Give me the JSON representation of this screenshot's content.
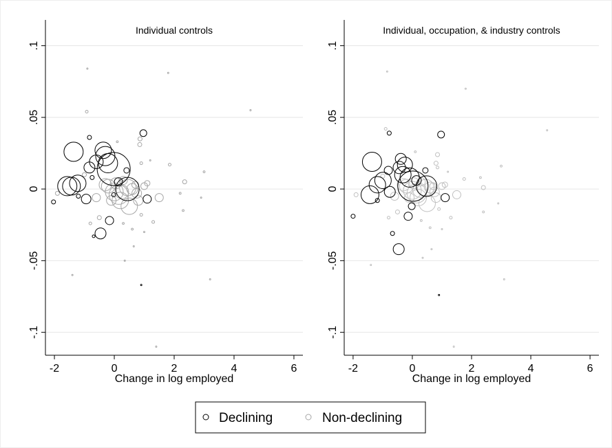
{
  "chart_data": [
    {
      "type": "scatter",
      "title": "Individual controls",
      "xlabel": "Change in log employed",
      "xlim": [
        -2.3,
        6.3
      ],
      "ylim": [
        -0.116,
        0.118
      ],
      "xticks": [
        -2,
        0,
        2,
        4,
        6
      ],
      "yticks": [
        {
          "value": 0.1,
          "label": ".1"
        },
        {
          "value": 0.05,
          "label": ".05"
        },
        {
          "value": 0,
          "label": "0"
        },
        {
          "value": -0.05,
          "label": "-.05"
        },
        {
          "value": -0.1,
          "label": "-.1"
        }
      ],
      "grid": true,
      "series": [
        {
          "name": "Declining",
          "color": "#000000",
          "x": [
            -1.36,
            0.97,
            -0.83,
            -0.37,
            -0.3,
            -0.21,
            -0.6,
            -0.02,
            -0.83,
            0.44,
            -1.57,
            -1.43,
            -1.22,
            0.14,
            0.41,
            -0.94,
            1.1,
            -2.03,
            -1.2,
            -0.74,
            -0.02,
            -0.16,
            -0.46,
            -0.69,
            0.9
          ],
          "y": [
            0.026,
            0.039,
            0.036,
            0.027,
            0.023,
            0.018,
            0.019,
            0.014,
            0.015,
            0.0,
            0.002,
            0.002,
            0.004,
            0.005,
            0.013,
            -0.007,
            -0.007,
            -0.009,
            -0.005,
            0.008,
            -0.004,
            -0.022,
            -0.031,
            -0.033,
            -0.067
          ],
          "sizes": [
            196,
            25,
            9,
            144,
            196,
            196,
            100,
            576,
            64,
            289,
            196,
            169,
            144,
            36,
            16,
            49,
            36,
            9,
            9,
            9,
            9,
            36,
            64,
            4,
            1
          ]
        },
        {
          "name": "Non-declining",
          "color": "#a6a6a6",
          "x": [
            -0.9,
            1.8,
            4.55,
            -0.92,
            0.86,
            0.85,
            1.2,
            1.85,
            3.0,
            2.35,
            2.2,
            1.5,
            1.0,
            0.75,
            0.6,
            0.3,
            0.0,
            -0.2,
            0.2,
            0.5,
            0.8,
            0.9,
            1.3,
            0.3,
            0.6,
            -0.8,
            -0.5,
            -1.9,
            -1.0,
            0.1,
            0.9,
            0.65,
            1.0,
            2.3,
            2.9,
            3.2,
            -1.4,
            1.4,
            0.35,
            0.45,
            0.15,
            -0.3,
            -0.6,
            0.05,
            0.7,
            -0.1,
            1.1,
            0.25
          ],
          "y": [
            0.084,
            0.081,
            0.055,
            0.054,
            0.035,
            0.031,
            0.02,
            0.017,
            0.012,
            0.005,
            -0.003,
            -0.006,
            0.002,
            -0.003,
            0.0,
            0.006,
            -0.002,
            0.002,
            -0.008,
            -0.012,
            -0.008,
            -0.018,
            -0.023,
            -0.024,
            -0.028,
            -0.024,
            -0.02,
            -0.003,
            0.01,
            0.033,
            0.018,
            -0.04,
            -0.03,
            -0.015,
            -0.006,
            -0.063,
            -0.06,
            -0.11,
            -0.05,
            0.001,
            -0.004,
            0.003,
            -0.006,
            0.004,
            0.003,
            -0.008,
            0.004,
            -0.002
          ],
          "sizes": [
            1,
            1,
            1,
            4,
            9,
            9,
            1,
            4,
            2,
            9,
            2,
            36,
            25,
            49,
            64,
            36,
            169,
            100,
            144,
            144,
            49,
            4,
            4,
            2,
            2,
            4,
            9,
            9,
            9,
            2,
            4,
            1,
            1,
            2,
            1,
            1,
            1,
            1,
            1,
            144,
            196,
            81,
            36,
            64,
            25,
            49,
            16,
            100
          ]
        }
      ]
    },
    {
      "type": "scatter",
      "title": "Individual, occupation, & industry controls",
      "xlabel": "Change in log employed",
      "xlim": [
        -2.3,
        6.3
      ],
      "ylim": [
        -0.116,
        0.118
      ],
      "xticks": [
        -2,
        0,
        2,
        4,
        6
      ],
      "yticks": [
        {
          "value": 0.1,
          "label": ".1"
        },
        {
          "value": 0.05,
          "label": ".05"
        },
        {
          "value": 0,
          "label": "0"
        },
        {
          "value": -0.05,
          "label": "-.05"
        },
        {
          "value": -0.1,
          "label": "-.1"
        }
      ],
      "grid": true,
      "series": [
        {
          "color": "#000000",
          "x": [
            -1.36,
            -2.0,
            -1.43,
            -0.99,
            -1.18,
            -0.76,
            -0.81,
            -0.44,
            -0.39,
            -0.25,
            -0.09,
            -0.32,
            0.02,
            0.48,
            0.14,
            0.44,
            -1.18,
            -0.78,
            0.97,
            1.11,
            -0.02,
            -0.14,
            -0.67,
            -0.46,
            0.9
          ],
          "y": [
            0.019,
            -0.019,
            -0.004,
            0.006,
            0.003,
            -0.002,
            0.013,
            0.015,
            0.021,
            0.017,
            0.008,
            0.01,
            0.002,
            0.002,
            0.006,
            0.013,
            -0.008,
            0.039,
            0.038,
            -0.006,
            -0.012,
            -0.019,
            -0.031,
            -0.042,
            -0.074
          ],
          "sizes": [
            196,
            9,
            169,
            144,
            144,
            64,
            36,
            81,
            64,
            121,
            196,
            144,
            484,
            225,
            49,
            16,
            9,
            9,
            25,
            36,
            25,
            36,
            9,
            64,
            1
          ]
        },
        {
          "color": "#bfbfbf",
          "x": [
            -0.85,
            1.8,
            4.55,
            -0.9,
            0.85,
            0.8,
            1.2,
            1.75,
            3.0,
            2.4,
            2.3,
            1.5,
            1.0,
            0.75,
            0.6,
            0.3,
            0.0,
            -0.2,
            0.2,
            0.5,
            0.8,
            0.9,
            1.3,
            0.3,
            0.6,
            -0.8,
            -0.5,
            -1.9,
            -1.0,
            0.1,
            0.85,
            0.65,
            1.0,
            2.4,
            2.9,
            3.1,
            -1.4,
            1.4,
            0.35,
            0.45,
            0.15,
            -0.3,
            -0.6,
            0.05,
            0.7,
            -0.1,
            1.1,
            0.25
          ],
          "y": [
            0.082,
            0.07,
            0.041,
            0.042,
            0.024,
            0.018,
            0.012,
            0.007,
            0.016,
            0.001,
            0.008,
            -0.004,
            0.002,
            -0.002,
            0.001,
            0.005,
            -0.001,
            0.002,
            -0.006,
            -0.01,
            -0.006,
            -0.014,
            -0.02,
            -0.022,
            -0.027,
            -0.02,
            -0.016,
            -0.004,
            0.009,
            0.026,
            0.015,
            -0.042,
            -0.028,
            -0.016,
            -0.01,
            -0.063,
            -0.053,
            -0.11,
            -0.048,
            0.001,
            -0.003,
            0.003,
            -0.005,
            0.004,
            0.002,
            -0.006,
            0.003,
            -0.001
          ],
          "sizes": [
            1,
            1,
            1,
            4,
            9,
            9,
            1,
            4,
            2,
            9,
            2,
            36,
            25,
            49,
            64,
            36,
            169,
            100,
            144,
            144,
            49,
            4,
            4,
            2,
            2,
            4,
            9,
            9,
            9,
            2,
            4,
            1,
            1,
            2,
            1,
            1,
            1,
            1,
            1,
            144,
            196,
            81,
            36,
            64,
            25,
            49,
            16,
            100
          ]
        }
      ]
    }
  ]
}
